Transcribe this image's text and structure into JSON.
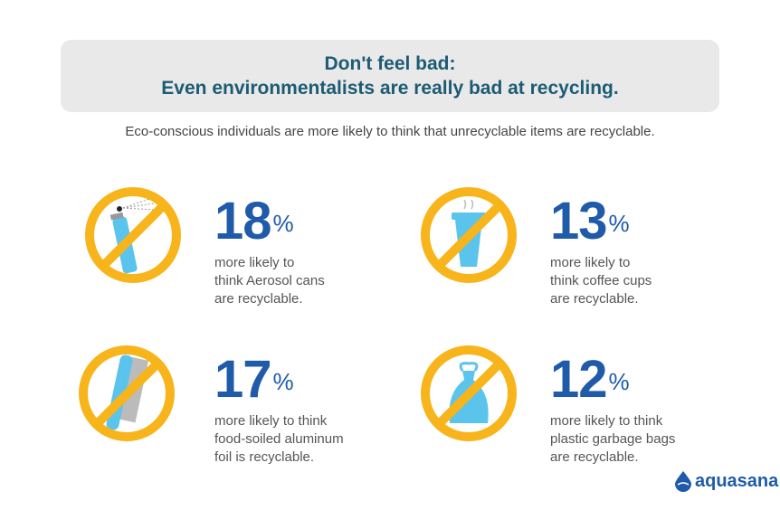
{
  "header": {
    "line1": "Don't feel bad:",
    "line2": "Even environmentalists are really bad at recycling."
  },
  "subtitle": "Eco-conscious individuals are more likely to think that unrecyclable items are recyclable.",
  "items": [
    {
      "icon": "aerosol-can-icon",
      "value": "18",
      "unit": "%",
      "lines": [
        "more likely to",
        "think Aerosol cans",
        "are recyclable."
      ]
    },
    {
      "icon": "coffee-cup-icon",
      "value": "13",
      "unit": "%",
      "lines": [
        "more likely to",
        "think coffee cups",
        "are recyclable."
      ]
    },
    {
      "icon": "aluminum-foil-icon",
      "value": "17",
      "unit": "%",
      "lines": [
        "more likely to think",
        "food-soiled aluminum",
        "foil is recyclable."
      ]
    },
    {
      "icon": "garbage-bag-icon",
      "value": "12",
      "unit": "%",
      "lines": [
        "more likely to think",
        "plastic garbage bags",
        "are recyclable."
      ]
    }
  ],
  "logo": {
    "text": "aquasana",
    "suffix": "."
  },
  "colors": {
    "title": "#1d5b74",
    "number": "#1f5ba8",
    "prohibit": "#f7b41b",
    "item": "#5bc4ec"
  }
}
